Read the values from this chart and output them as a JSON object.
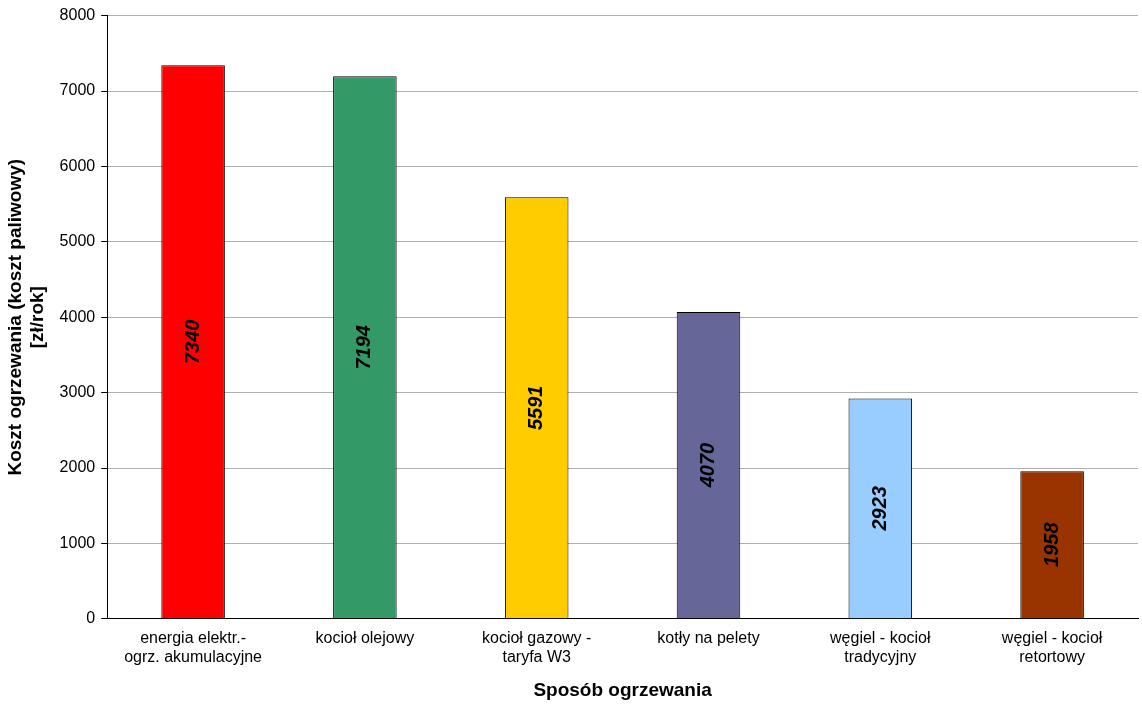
{
  "chart_data": {
    "type": "bar",
    "xlabel": "Sposób ogrzewania",
    "ylabel": "Koszt ogrzewania (koszt paliwowy)\n[zł/rok]",
    "categories": [
      "energia elektr.-\nogrz. akumulacyjne",
      "kocioł olejowy",
      "kocioł gazowy -\ntaryfa W3",
      "kotły na pelety",
      "węgiel - kocioł\ntradycyjny",
      "węgiel - kocioł\nretortowy"
    ],
    "values": [
      7340,
      7194,
      5591,
      4070,
      2923,
      1958
    ],
    "colors": [
      "#ff0000",
      "#339966",
      "#ffcc00",
      "#666699",
      "#99ccff",
      "#993300"
    ],
    "ylim": [
      0,
      8000
    ],
    "yticks": [
      0,
      1000,
      2000,
      3000,
      4000,
      5000,
      6000,
      7000,
      8000
    ],
    "grid": "y",
    "legend": false,
    "data_labels": true
  }
}
